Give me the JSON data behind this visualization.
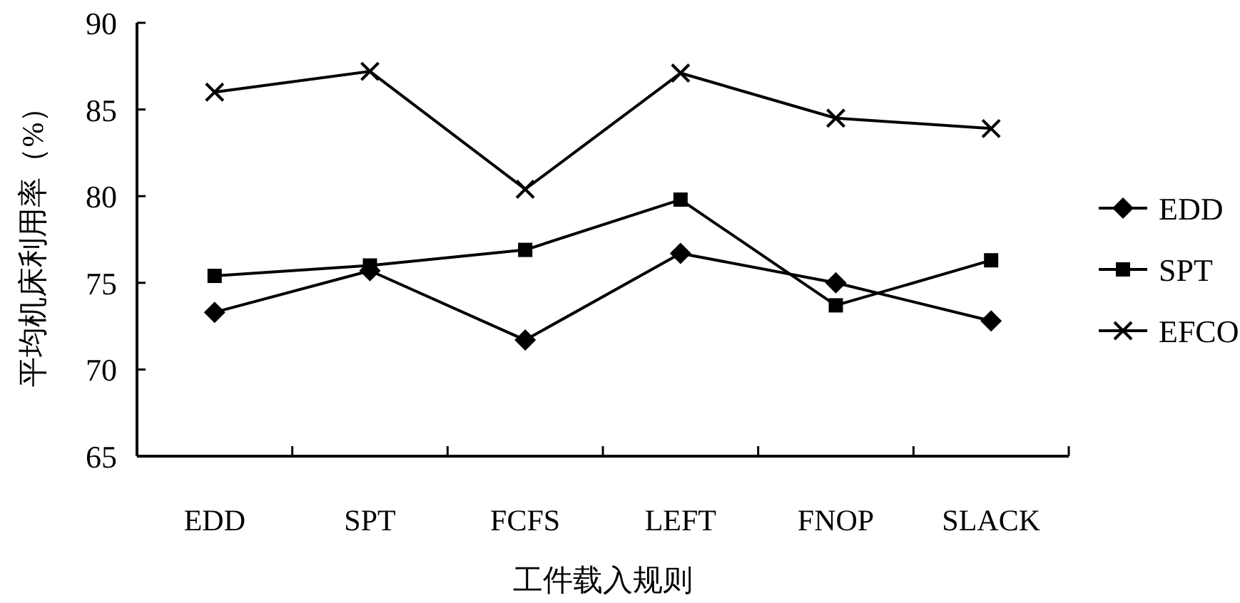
{
  "chart_data": {
    "type": "line",
    "xlabel": "工件载入规则",
    "ylabel": "平均机床利用率（%）",
    "categories": [
      "EDD",
      "SPT",
      "FCFS",
      "LEFT",
      "FNOP",
      "SLACK"
    ],
    "series": [
      {
        "name": "EDD",
        "color": "#000000",
        "marker": "diamond",
        "values": [
          73.3,
          75.7,
          71.7,
          76.7,
          75.0,
          72.8
        ]
      },
      {
        "name": "SPT",
        "color": "#000000",
        "marker": "square",
        "values": [
          75.4,
          76.0,
          76.9,
          79.8,
          73.7,
          76.3
        ]
      },
      {
        "name": "EFCO",
        "color": "#000000",
        "marker": "cross",
        "values": [
          86.0,
          87.2,
          80.4,
          87.1,
          84.5,
          83.9
        ]
      }
    ],
    "ylim": [
      65,
      90
    ],
    "yticks": [
      65,
      70,
      75,
      80,
      85,
      90
    ],
    "grid": false,
    "legend": "right",
    "line_style": "solid"
  }
}
